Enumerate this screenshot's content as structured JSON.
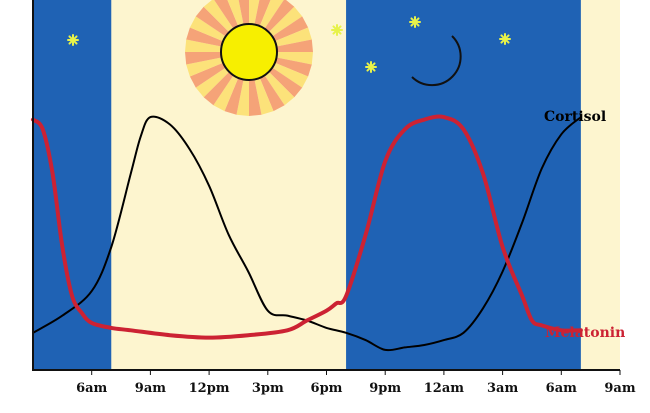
{
  "chart_data": {
    "type": "line",
    "title": "",
    "xlabel": "",
    "ylabel": "",
    "x_ticks": [
      "6am",
      "9am",
      "12pm",
      "3pm",
      "6pm",
      "9pm",
      "12am",
      "3am",
      "6am",
      "9am"
    ],
    "x_range_hours": [
      3,
      33
    ],
    "y_axis_values_shown": false,
    "night_periods_hours": [
      [
        3,
        7
      ],
      [
        19,
        31
      ]
    ],
    "series": [
      {
        "name": "Cortisol",
        "color": "#000000",
        "x_hours": [
          3,
          4.5,
          6,
          7,
          8,
          8.5,
          9,
          10,
          11,
          12,
          13,
          14,
          15,
          16,
          17,
          18,
          19,
          20,
          21,
          22,
          23,
          24,
          25,
          26,
          27,
          28,
          29,
          30,
          31
        ],
        "y_relative": [
          0.05,
          0.12,
          0.22,
          0.4,
          0.7,
          0.85,
          0.93,
          0.9,
          0.8,
          0.65,
          0.45,
          0.3,
          0.14,
          0.12,
          0.1,
          0.07,
          0.05,
          0.02,
          -0.02,
          -0.01,
          0.0,
          0.02,
          0.05,
          0.15,
          0.3,
          0.5,
          0.72,
          0.86,
          0.93
        ]
      },
      {
        "name": "Melatonin",
        "color": "#cc2233",
        "x_hours": [
          3,
          3.5,
          4,
          4.5,
          5,
          5.5,
          6,
          7,
          8,
          10,
          12,
          14,
          16,
          17,
          18,
          18.5,
          19,
          20,
          21,
          22,
          23,
          24,
          25,
          26,
          27,
          28,
          28.5,
          29,
          30,
          31
        ],
        "y_relative": [
          0.92,
          0.88,
          0.7,
          0.4,
          0.2,
          0.13,
          0.09,
          0.07,
          0.06,
          0.04,
          0.03,
          0.04,
          0.06,
          0.1,
          0.14,
          0.17,
          0.2,
          0.45,
          0.75,
          0.88,
          0.92,
          0.93,
          0.88,
          0.7,
          0.4,
          0.2,
          0.1,
          0.08,
          0.06,
          0.06
        ]
      }
    ],
    "colors": {
      "night": "#1f62b4",
      "day": "#fdf5cf",
      "sun": "#f7ef00",
      "sun_rays_a": "#f5a378",
      "sun_rays_b": "#fce27a",
      "moon": "#f7f06a",
      "star": "#e7f24a"
    },
    "icons": [
      "sun-icon",
      "moon-icon",
      "star-icon"
    ],
    "grid": false,
    "legend": "inline labels at right end of each series"
  }
}
